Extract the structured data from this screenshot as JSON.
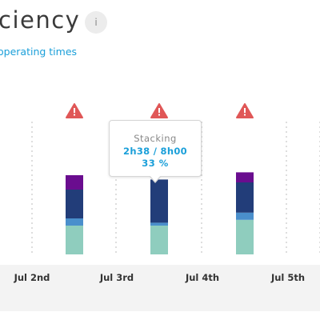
{
  "header": {
    "title": "ciency",
    "info_label": "i",
    "subtitle": "operating times"
  },
  "tooltip": {
    "label": "Stacking",
    "value": "2h38 / 8h00",
    "percent": "33 %"
  },
  "colors": {
    "bottom_segment": "#8fcdbe",
    "light_blue_segment": "#4a8fcc",
    "navy_segment": "#223d79",
    "purple_segment": "#6a0d8f",
    "warning": "#e05757",
    "link": "#1a9fd9"
  },
  "icons": {
    "warning": "warning-triangle-icon",
    "info": "info-icon"
  },
  "chart_data": {
    "type": "bar",
    "stacked": true,
    "x_tick_labels": [
      "Jul 2nd",
      "Jul 3rd",
      "Jul 4th",
      "Jul 5th"
    ],
    "series_order_bottom_to_top": [
      "bottom_segment",
      "light_blue_segment",
      "navy_segment",
      "purple_segment"
    ],
    "bars": [
      {
        "segments": [
          20,
          5,
          20,
          10
        ],
        "warning": true
      },
      {
        "segments": [
          20,
          2,
          30,
          0
        ],
        "warning": true,
        "tooltip": true
      },
      {
        "segments": [
          24,
          5,
          21,
          7
        ],
        "warning": true
      }
    ]
  }
}
